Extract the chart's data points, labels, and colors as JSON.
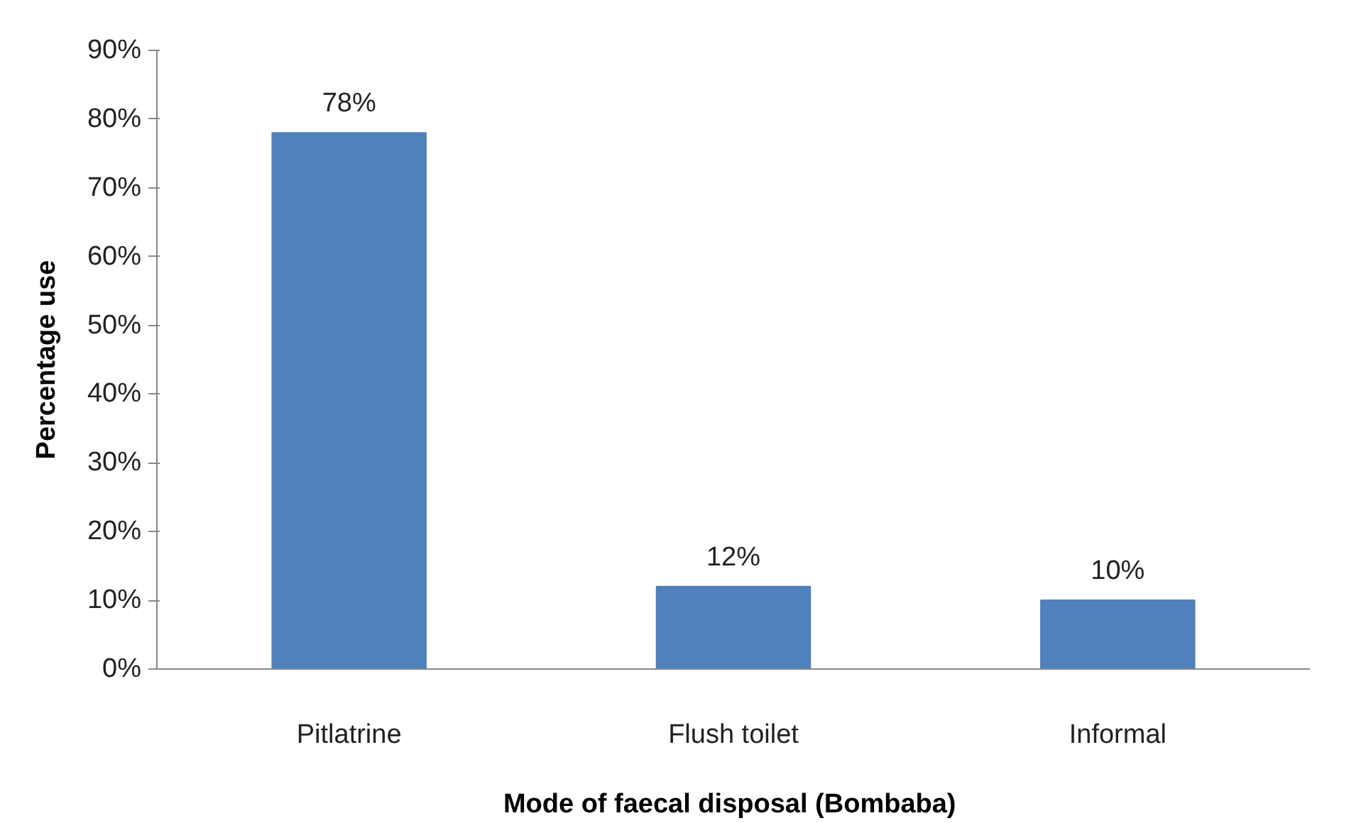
{
  "chart_data": {
    "type": "bar",
    "xlabel": "Mode of faecal disposal  (Bombaba)",
    "ylabel": "Percentage use",
    "categories": [
      "Pitlatrine",
      "Flush toilet",
      "Informal"
    ],
    "values": [
      78,
      12,
      10
    ],
    "value_labels": [
      "78%",
      "12%",
      "10%"
    ],
    "color": "#4f81bd",
    "ylim": [
      0,
      90
    ],
    "yticks": [
      {
        "value": 0,
        "label": "0%"
      },
      {
        "value": 10,
        "label": "10%"
      },
      {
        "value": 20,
        "label": "20%"
      },
      {
        "value": 30,
        "label": "30%"
      },
      {
        "value": 40,
        "label": "40%"
      },
      {
        "value": 50,
        "label": "50%"
      },
      {
        "value": 60,
        "label": "60%"
      },
      {
        "value": 70,
        "label": "70%"
      },
      {
        "value": 80,
        "label": "80%"
      },
      {
        "value": 90,
        "label": "90%"
      }
    ],
    "grid": false
  }
}
